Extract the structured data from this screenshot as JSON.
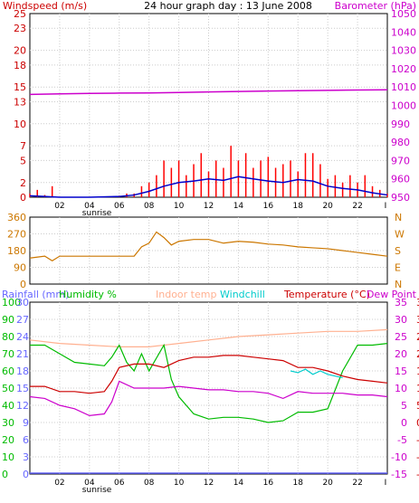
{
  "title": "24 hour graph day : 13 June 2008",
  "x_ticks": [
    "02",
    "04",
    "06",
    "08",
    "10",
    "12",
    "14",
    "16",
    "18",
    "20",
    "22",
    "I"
  ],
  "sunrise_label": "sunrise",
  "colors": {
    "wind": "#ff0000",
    "gust_line": "#0000cc",
    "barometer": "#cc00cc",
    "direction": "#cc7700",
    "rain": "#6666ff",
    "humidity": "#00bb00",
    "indoor": "#ffb090",
    "windchill": "#00cccc",
    "temperature": "#cc0000",
    "dewpoint": "#cc00cc",
    "axis_left_rain": "#6666ff",
    "axis_right_temp": "#cc00cc"
  },
  "chart_data": [
    {
      "type": "line",
      "name": "wind_barometer",
      "labels": {
        "left": "Windspeed (m/s)",
        "right": "Barometer (hPa)"
      },
      "x_range_hours": [
        0,
        24
      ],
      "left_axis": {
        "ticks": [
          0,
          2,
          5,
          7,
          10,
          13,
          15,
          18,
          20,
          23,
          25
        ],
        "ylim": [
          0,
          25
        ]
      },
      "right_axis": {
        "ticks": [
          950,
          960,
          970,
          980,
          990,
          1000,
          1010,
          1020,
          1030,
          1040,
          1050
        ],
        "ylim": [
          950,
          1050
        ]
      },
      "grid": true,
      "series": [
        {
          "series_role": "barometer",
          "axis": "right",
          "x": [
            0,
            2,
            4,
            6,
            8,
            10,
            12,
            14,
            16,
            18,
            20,
            22,
            24
          ],
          "y": [
            1006,
            1006.3,
            1006.5,
            1006.7,
            1006.8,
            1007,
            1007.3,
            1007.6,
            1007.8,
            1008,
            1008.2,
            1008.4,
            1008.5
          ]
        },
        {
          "series_role": "wind",
          "axis": "left",
          "x": [
            0,
            0.5,
            1,
            1.5,
            2,
            3,
            4,
            5,
            6,
            6.5,
            7,
            7.5,
            8,
            8.5,
            9,
            9.5,
            10,
            10.5,
            11,
            11.5,
            12,
            12.5,
            13,
            13.5,
            14,
            14.5,
            15,
            15.5,
            16,
            16.5,
            17,
            17.5,
            18,
            18.5,
            19,
            19.5,
            20,
            20.5,
            21,
            21.5,
            22,
            22.5,
            23,
            23.5,
            24
          ],
          "y": [
            0.5,
            1,
            0.3,
            1.5,
            0,
            0,
            0,
            0,
            0.2,
            0.5,
            0.5,
            1.5,
            2,
            3,
            5,
            4,
            5,
            3,
            4.5,
            6,
            3.5,
            5,
            4,
            7,
            5,
            6,
            4,
            5,
            5.5,
            4,
            4.5,
            5,
            3.5,
            6,
            6,
            4.5,
            2.5,
            3,
            2,
            3,
            2,
            3,
            1.5,
            1,
            0.5
          ]
        },
        {
          "series_role": "gust_line",
          "axis": "left",
          "x": [
            0,
            2,
            4,
            6,
            7,
            8,
            9,
            10,
            11,
            12,
            13,
            14,
            15,
            16,
            17,
            18,
            19,
            20,
            21,
            22,
            23,
            24
          ],
          "y": [
            0.2,
            0,
            0,
            0.1,
            0.3,
            0.8,
            1.5,
            2,
            2.2,
            2.5,
            2.3,
            2.8,
            2.5,
            2.2,
            2,
            2.4,
            2.2,
            1.5,
            1.2,
            1,
            0.6,
            0.3
          ]
        }
      ]
    },
    {
      "type": "line",
      "name": "wind_direction",
      "x_range_hours": [
        0,
        24
      ],
      "left_axis": {
        "ticks": [
          0,
          90,
          180,
          270,
          360
        ],
        "ylim": [
          0,
          360
        ]
      },
      "right_axis": {
        "ticks": [
          "N",
          "E",
          "S",
          "W",
          "N"
        ]
      },
      "grid": true,
      "series": [
        {
          "series_role": "direction",
          "x": [
            0,
            1,
            1.5,
            2,
            3,
            4,
            5,
            6,
            7,
            7.5,
            8,
            8.5,
            9,
            9.5,
            10,
            11,
            12,
            13,
            14,
            15,
            16,
            17,
            18,
            19,
            20,
            21,
            22,
            23,
            24
          ],
          "y": [
            140,
            150,
            125,
            150,
            150,
            150,
            150,
            150,
            150,
            200,
            220,
            280,
            250,
            210,
            230,
            240,
            240,
            220,
            230,
            225,
            215,
            210,
            200,
            195,
            190,
            180,
            170,
            160,
            150
          ]
        }
      ]
    },
    {
      "type": "line",
      "name": "temp_humidity",
      "labels": {
        "rainfall": "Rainfall (mm)",
        "humidity": "Humidity %",
        "indoor": "Indoor temp",
        "windchill": "Windchill",
        "temperature": "Temperature (°C)",
        "dewpoint": "Dew Point"
      },
      "x_range_hours": [
        0,
        24
      ],
      "rain_axis": {
        "ticks": [
          0,
          3,
          6,
          9,
          12,
          15,
          18,
          21,
          24,
          27,
          30
        ],
        "ylim": [
          0,
          30
        ]
      },
      "humidity_axis": {
        "ticks": [
          0,
          10,
          20,
          30,
          40,
          50,
          60,
          70,
          80,
          90,
          100
        ],
        "ylim": [
          0,
          100
        ]
      },
      "temp_axis_dew": {
        "ticks": [
          -15,
          -10,
          -5,
          0,
          5,
          10,
          15,
          20,
          25,
          30,
          35
        ],
        "ylim": [
          -15,
          35
        ]
      },
      "temp_axis": {
        "ticks": [
          -15,
          -10,
          -5,
          0,
          5,
          10,
          15,
          20,
          25,
          30,
          35
        ],
        "ylim": [
          -15,
          35
        ]
      },
      "grid": true,
      "series": [
        {
          "series_role": "indoor",
          "axis": "temp",
          "x": [
            0,
            2,
            4,
            6,
            8,
            10,
            12,
            14,
            16,
            18,
            20,
            22,
            24
          ],
          "y": [
            24,
            23,
            22.5,
            22,
            22,
            23,
            24,
            25,
            25.5,
            26,
            26.5,
            26.5,
            27
          ]
        },
        {
          "series_role": "humidity",
          "axis": "humidity",
          "x": [
            0,
            1,
            2,
            3,
            4,
            5,
            5.5,
            6,
            6.5,
            7,
            7.5,
            8,
            9,
            9.5,
            10,
            11,
            12,
            13,
            14,
            15,
            16,
            17,
            18,
            19,
            20,
            21,
            22,
            23,
            24
          ],
          "y": [
            75,
            75,
            70,
            65,
            64,
            63,
            68,
            75,
            65,
            60,
            70,
            60,
            75,
            55,
            45,
            35,
            32,
            33,
            33,
            32,
            30,
            31,
            36,
            36,
            38,
            60,
            75,
            75,
            76
          ]
        },
        {
          "series_role": "temperature",
          "axis": "temp",
          "x": [
            0,
            1,
            2,
            3,
            4,
            5,
            5.5,
            6,
            7,
            8,
            9,
            10,
            11,
            12,
            13,
            14,
            15,
            16,
            17,
            18,
            19,
            20,
            21,
            22,
            23,
            24
          ],
          "y": [
            10.5,
            10.5,
            9,
            9,
            8.5,
            9,
            12,
            16,
            17,
            17,
            16,
            18,
            19,
            19,
            19.5,
            19.5,
            19,
            18.5,
            18,
            16,
            16,
            15,
            13.5,
            12.5,
            12,
            11.5
          ]
        },
        {
          "series_role": "windchill",
          "axis": "temp",
          "x": [
            17.5,
            18,
            18.5,
            19,
            19.5,
            20,
            20.5,
            21
          ],
          "y": [
            15,
            14.5,
            15.5,
            14,
            15,
            14,
            13.5,
            13
          ]
        },
        {
          "series_role": "dewpoint",
          "axis": "temp",
          "x": [
            0,
            1,
            2,
            3,
            4,
            5,
            5.5,
            6,
            7,
            8,
            9,
            10,
            11,
            12,
            13,
            14,
            15,
            16,
            17,
            18,
            19,
            20,
            21,
            22,
            23,
            24
          ],
          "y": [
            7.5,
            7,
            5,
            4,
            2,
            2.5,
            6,
            12,
            10,
            10,
            10,
            10.5,
            10,
            9.5,
            9.5,
            9,
            9,
            8.5,
            7,
            9,
            8.5,
            8.5,
            8.5,
            8,
            8,
            7.5
          ]
        }
      ]
    }
  ]
}
